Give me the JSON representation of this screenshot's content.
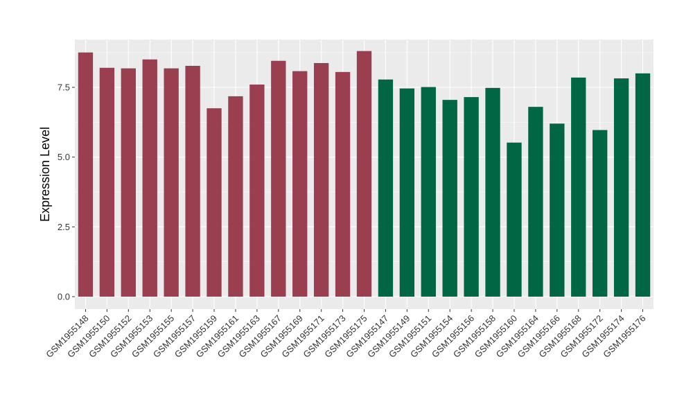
{
  "chart_data": {
    "type": "bar",
    "title": "",
    "xlabel": "",
    "ylabel": "Expression Level",
    "ylim": [
      0,
      8.9
    ],
    "yticks": [
      0.0,
      2.5,
      5.0,
      7.5
    ],
    "ytick_labels": [
      "0.0",
      "2.5",
      "5.0",
      "7.5"
    ],
    "grid": true,
    "legend": "none",
    "colors": {
      "group_a": "#9a3f4f",
      "group_b": "#006644",
      "panel": "#ebebeb",
      "grid": "#ffffff"
    },
    "categories": [
      "GSM1955148",
      "GSM1955150",
      "GSM1955152",
      "GSM1955153",
      "GSM1955155",
      "GSM1955157",
      "GSM1955159",
      "GSM1955161",
      "GSM1955163",
      "GSM1955167",
      "GSM1955169",
      "GSM1955171",
      "GSM1955173",
      "GSM1955175",
      "GSM1955147",
      "GSM1955149",
      "GSM1955151",
      "GSM1955154",
      "GSM1955156",
      "GSM1955158",
      "GSM1955160",
      "GSM1955164",
      "GSM1955166",
      "GSM1955168",
      "GSM1955172",
      "GSM1955174",
      "GSM1955176"
    ],
    "values": [
      8.75,
      8.2,
      8.18,
      8.5,
      8.18,
      8.27,
      6.75,
      7.18,
      7.6,
      8.45,
      8.08,
      8.37,
      8.05,
      8.8,
      7.78,
      7.46,
      7.51,
      7.05,
      7.15,
      7.48,
      5.52,
      6.8,
      6.2,
      7.85,
      5.97,
      7.82,
      8.0
    ],
    "groups": [
      "group_a",
      "group_a",
      "group_a",
      "group_a",
      "group_a",
      "group_a",
      "group_a",
      "group_a",
      "group_a",
      "group_a",
      "group_a",
      "group_a",
      "group_a",
      "group_a",
      "group_b",
      "group_b",
      "group_b",
      "group_b",
      "group_b",
      "group_b",
      "group_b",
      "group_b",
      "group_b",
      "group_b",
      "group_b",
      "group_b",
      "group_b"
    ]
  }
}
